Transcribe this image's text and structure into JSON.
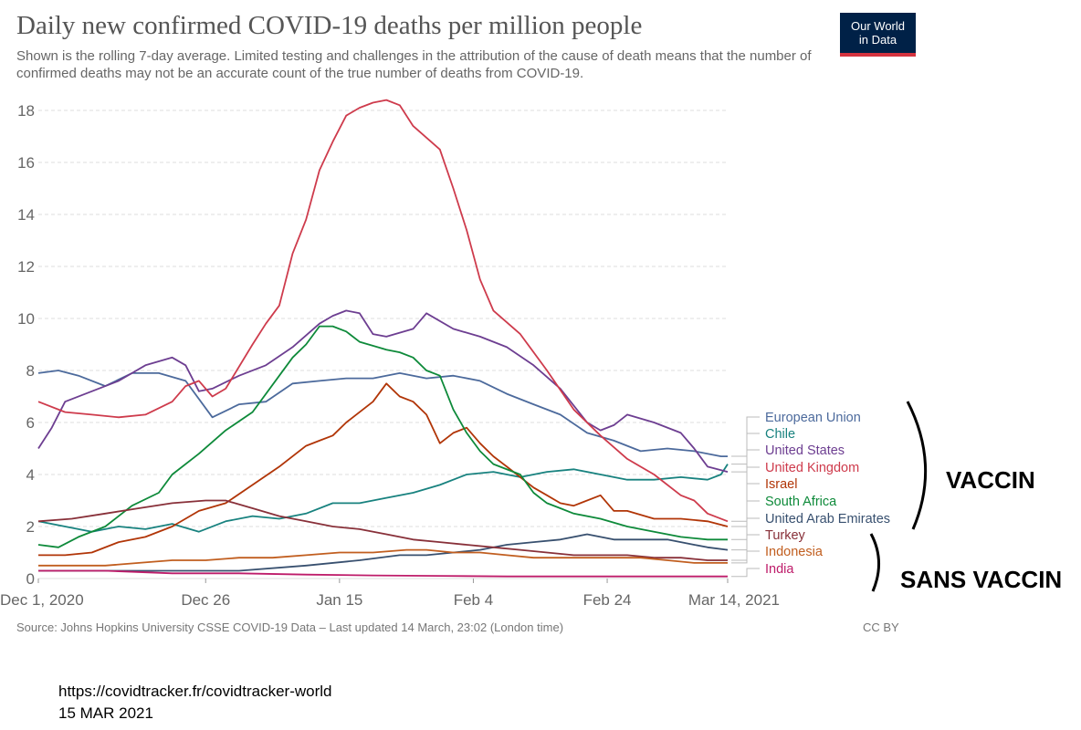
{
  "header": {
    "title": "Daily new confirmed COVID-19 deaths per million people",
    "subtitle": "Shown is the rolling 7-day average. Limited testing and challenges in the attribution of the cause of death means that the number of confirmed deaths may not be an accurate count of the true number of deaths from COVID-19.",
    "logo_line1": "Our World",
    "logo_line2": "in Data"
  },
  "footer": {
    "source": "Source: Johns Hopkins University CSSE COVID-19 Data – Last updated 14 March, 23:02 (London time)",
    "license": "CC BY"
  },
  "annotations": {
    "vaccin": "VACCIN",
    "sans_vaccin": "SANS VACCIN",
    "url": "https://covidtracker.fr/covidtracker-world",
    "date": "15 MAR 2021"
  },
  "colors": {
    "background": "#ffffff",
    "grid": "#dddddd",
    "axis_text": "#666666",
    "logo_background": "#002147",
    "logo_accent": "#d4333f"
  },
  "chart_data": {
    "type": "line",
    "title": "Daily new confirmed COVID-19 deaths per million people",
    "xlabel": "",
    "ylabel": "",
    "x_ticks": [
      "Dec 1, 2020",
      "Dec 26",
      "Jan 15",
      "Feb 4",
      "Feb 24",
      "Mar 14, 2021"
    ],
    "x_tick_days": [
      0,
      25,
      45,
      65,
      85,
      103
    ],
    "x_range": [
      "2020-12-01",
      "2021-03-14"
    ],
    "y_ticks": [
      0,
      2,
      4,
      6,
      8,
      10,
      12,
      14,
      16,
      18
    ],
    "ylim": [
      0,
      18.5
    ],
    "grid": true,
    "legend": "right, labels at line ends",
    "groups": [
      {
        "label": "VACCIN",
        "members": [
          "European Union",
          "Chile",
          "United States",
          "United Kingdom",
          "Israel",
          "South Africa",
          "United Arab Emirates"
        ]
      },
      {
        "label": "SANS VACCIN",
        "members": [
          "Turkey",
          "Indonesia",
          "India"
        ]
      }
    ],
    "series": [
      {
        "name": "European Union",
        "color": "#4c6a9c",
        "points": [
          [
            0,
            7.9
          ],
          [
            3,
            8.0
          ],
          [
            6,
            7.8
          ],
          [
            10,
            7.4
          ],
          [
            14,
            7.9
          ],
          [
            18,
            7.9
          ],
          [
            22,
            7.6
          ],
          [
            26,
            6.2
          ],
          [
            30,
            6.7
          ],
          [
            34,
            6.8
          ],
          [
            38,
            7.5
          ],
          [
            42,
            7.6
          ],
          [
            46,
            7.7
          ],
          [
            50,
            7.7
          ],
          [
            54,
            7.9
          ],
          [
            58,
            7.7
          ],
          [
            62,
            7.8
          ],
          [
            66,
            7.6
          ],
          [
            70,
            7.1
          ],
          [
            74,
            6.7
          ],
          [
            78,
            6.3
          ],
          [
            82,
            5.6
          ],
          [
            86,
            5.3
          ],
          [
            90,
            4.9
          ],
          [
            94,
            5.0
          ],
          [
            98,
            4.9
          ],
          [
            102,
            4.7
          ],
          [
            103,
            4.7
          ]
        ]
      },
      {
        "name": "Chile",
        "color": "#18827f",
        "points": [
          [
            0,
            2.2
          ],
          [
            4,
            2.0
          ],
          [
            8,
            1.8
          ],
          [
            12,
            2.0
          ],
          [
            16,
            1.9
          ],
          [
            20,
            2.1
          ],
          [
            24,
            1.8
          ],
          [
            28,
            2.2
          ],
          [
            32,
            2.4
          ],
          [
            36,
            2.3
          ],
          [
            40,
            2.5
          ],
          [
            44,
            2.9
          ],
          [
            48,
            2.9
          ],
          [
            52,
            3.1
          ],
          [
            56,
            3.3
          ],
          [
            60,
            3.6
          ],
          [
            64,
            4.0
          ],
          [
            68,
            4.1
          ],
          [
            72,
            3.9
          ],
          [
            76,
            4.1
          ],
          [
            80,
            4.2
          ],
          [
            84,
            4.0
          ],
          [
            88,
            3.8
          ],
          [
            92,
            3.8
          ],
          [
            96,
            3.9
          ],
          [
            100,
            3.8
          ],
          [
            102,
            4.0
          ],
          [
            103,
            4.4
          ]
        ]
      },
      {
        "name": "United States",
        "color": "#6d3e91",
        "points": [
          [
            0,
            5.0
          ],
          [
            2,
            5.8
          ],
          [
            4,
            6.8
          ],
          [
            8,
            7.2
          ],
          [
            12,
            7.6
          ],
          [
            16,
            8.2
          ],
          [
            20,
            8.5
          ],
          [
            22,
            8.2
          ],
          [
            24,
            7.2
          ],
          [
            26,
            7.3
          ],
          [
            30,
            7.8
          ],
          [
            34,
            8.2
          ],
          [
            38,
            8.9
          ],
          [
            42,
            9.8
          ],
          [
            44,
            10.1
          ],
          [
            46,
            10.3
          ],
          [
            48,
            10.2
          ],
          [
            50,
            9.4
          ],
          [
            52,
            9.3
          ],
          [
            56,
            9.6
          ],
          [
            58,
            10.2
          ],
          [
            62,
            9.6
          ],
          [
            66,
            9.3
          ],
          [
            70,
            8.9
          ],
          [
            74,
            8.2
          ],
          [
            78,
            7.3
          ],
          [
            82,
            6.0
          ],
          [
            84,
            5.7
          ],
          [
            86,
            5.9
          ],
          [
            88,
            6.3
          ],
          [
            92,
            6.0
          ],
          [
            96,
            5.6
          ],
          [
            98,
            5.0
          ],
          [
            100,
            4.3
          ],
          [
            103,
            4.1
          ]
        ]
      },
      {
        "name": "United Kingdom",
        "color": "#ce3b4c",
        "points": [
          [
            0,
            6.8
          ],
          [
            4,
            6.4
          ],
          [
            8,
            6.3
          ],
          [
            12,
            6.2
          ],
          [
            16,
            6.3
          ],
          [
            20,
            6.8
          ],
          [
            22,
            7.4
          ],
          [
            24,
            7.6
          ],
          [
            26,
            7.0
          ],
          [
            28,
            7.3
          ],
          [
            32,
            9.0
          ],
          [
            34,
            9.8
          ],
          [
            36,
            10.5
          ],
          [
            38,
            12.5
          ],
          [
            40,
            13.8
          ],
          [
            42,
            15.7
          ],
          [
            44,
            16.8
          ],
          [
            46,
            17.8
          ],
          [
            48,
            18.1
          ],
          [
            50,
            18.3
          ],
          [
            52,
            18.4
          ],
          [
            54,
            18.2
          ],
          [
            56,
            17.4
          ],
          [
            60,
            16.5
          ],
          [
            62,
            15.0
          ],
          [
            64,
            13.4
          ],
          [
            66,
            11.5
          ],
          [
            68,
            10.3
          ],
          [
            72,
            9.4
          ],
          [
            76,
            8.0
          ],
          [
            80,
            6.5
          ],
          [
            84,
            5.5
          ],
          [
            88,
            4.6
          ],
          [
            92,
            4.0
          ],
          [
            96,
            3.2
          ],
          [
            98,
            3.0
          ],
          [
            100,
            2.5
          ],
          [
            103,
            2.2
          ]
        ]
      },
      {
        "name": "Israel",
        "color": "#b13507",
        "points": [
          [
            0,
            0.9
          ],
          [
            4,
            0.9
          ],
          [
            8,
            1.0
          ],
          [
            12,
            1.4
          ],
          [
            16,
            1.6
          ],
          [
            20,
            2.0
          ],
          [
            24,
            2.6
          ],
          [
            28,
            2.9
          ],
          [
            32,
            3.6
          ],
          [
            36,
            4.3
          ],
          [
            40,
            5.1
          ],
          [
            42,
            5.3
          ],
          [
            44,
            5.5
          ],
          [
            46,
            6.0
          ],
          [
            50,
            6.8
          ],
          [
            52,
            7.5
          ],
          [
            54,
            7.0
          ],
          [
            56,
            6.8
          ],
          [
            58,
            6.3
          ],
          [
            60,
            5.2
          ],
          [
            62,
            5.6
          ],
          [
            64,
            5.8
          ],
          [
            66,
            5.2
          ],
          [
            68,
            4.7
          ],
          [
            70,
            4.3
          ],
          [
            74,
            3.5
          ],
          [
            76,
            3.2
          ],
          [
            78,
            2.9
          ],
          [
            80,
            2.8
          ],
          [
            84,
            3.2
          ],
          [
            86,
            2.6
          ],
          [
            88,
            2.6
          ],
          [
            92,
            2.3
          ],
          [
            96,
            2.3
          ],
          [
            100,
            2.2
          ],
          [
            103,
            2.0
          ]
        ]
      },
      {
        "name": "South Africa",
        "color": "#0e8a3a",
        "points": [
          [
            0,
            1.3
          ],
          [
            3,
            1.2
          ],
          [
            6,
            1.6
          ],
          [
            10,
            2.0
          ],
          [
            14,
            2.8
          ],
          [
            18,
            3.3
          ],
          [
            20,
            4.0
          ],
          [
            24,
            4.8
          ],
          [
            28,
            5.7
          ],
          [
            32,
            6.4
          ],
          [
            36,
            7.8
          ],
          [
            38,
            8.5
          ],
          [
            40,
            9.0
          ],
          [
            42,
            9.7
          ],
          [
            44,
            9.7
          ],
          [
            46,
            9.5
          ],
          [
            48,
            9.1
          ],
          [
            52,
            8.8
          ],
          [
            54,
            8.7
          ],
          [
            56,
            8.5
          ],
          [
            58,
            8.0
          ],
          [
            60,
            7.8
          ],
          [
            62,
            6.5
          ],
          [
            64,
            5.6
          ],
          [
            66,
            4.9
          ],
          [
            68,
            4.4
          ],
          [
            72,
            4.0
          ],
          [
            74,
            3.3
          ],
          [
            76,
            2.9
          ],
          [
            78,
            2.7
          ],
          [
            80,
            2.5
          ],
          [
            84,
            2.3
          ],
          [
            88,
            2.0
          ],
          [
            92,
            1.8
          ],
          [
            96,
            1.6
          ],
          [
            100,
            1.5
          ],
          [
            103,
            1.5
          ]
        ]
      },
      {
        "name": "United Arab Emirates",
        "color": "#38506f",
        "points": [
          [
            0,
            0.3
          ],
          [
            10,
            0.3
          ],
          [
            20,
            0.3
          ],
          [
            30,
            0.3
          ],
          [
            40,
            0.5
          ],
          [
            48,
            0.7
          ],
          [
            54,
            0.9
          ],
          [
            58,
            0.9
          ],
          [
            62,
            1.0
          ],
          [
            66,
            1.1
          ],
          [
            70,
            1.3
          ],
          [
            74,
            1.4
          ],
          [
            78,
            1.5
          ],
          [
            82,
            1.7
          ],
          [
            86,
            1.5
          ],
          [
            90,
            1.5
          ],
          [
            94,
            1.5
          ],
          [
            98,
            1.3
          ],
          [
            100,
            1.2
          ],
          [
            103,
            1.1
          ]
        ]
      },
      {
        "name": "Turkey",
        "color": "#883039",
        "points": [
          [
            0,
            2.2
          ],
          [
            5,
            2.3
          ],
          [
            10,
            2.5
          ],
          [
            15,
            2.7
          ],
          [
            20,
            2.9
          ],
          [
            25,
            3.0
          ],
          [
            28,
            3.0
          ],
          [
            32,
            2.7
          ],
          [
            36,
            2.4
          ],
          [
            40,
            2.2
          ],
          [
            44,
            2.0
          ],
          [
            48,
            1.9
          ],
          [
            52,
            1.7
          ],
          [
            56,
            1.5
          ],
          [
            60,
            1.4
          ],
          [
            64,
            1.3
          ],
          [
            68,
            1.2
          ],
          [
            72,
            1.1
          ],
          [
            76,
            1.0
          ],
          [
            80,
            0.9
          ],
          [
            84,
            0.9
          ],
          [
            88,
            0.9
          ],
          [
            92,
            0.8
          ],
          [
            96,
            0.8
          ],
          [
            100,
            0.7
          ],
          [
            103,
            0.7
          ]
        ]
      },
      {
        "name": "Indonesia",
        "color": "#c15e1f",
        "points": [
          [
            0,
            0.5
          ],
          [
            5,
            0.5
          ],
          [
            10,
            0.5
          ],
          [
            15,
            0.6
          ],
          [
            20,
            0.7
          ],
          [
            25,
            0.7
          ],
          [
            30,
            0.8
          ],
          [
            35,
            0.8
          ],
          [
            40,
            0.9
          ],
          [
            45,
            1.0
          ],
          [
            50,
            1.0
          ],
          [
            55,
            1.1
          ],
          [
            58,
            1.1
          ],
          [
            62,
            1.0
          ],
          [
            66,
            1.0
          ],
          [
            70,
            0.9
          ],
          [
            74,
            0.8
          ],
          [
            78,
            0.8
          ],
          [
            82,
            0.8
          ],
          [
            86,
            0.8
          ],
          [
            90,
            0.8
          ],
          [
            94,
            0.7
          ],
          [
            98,
            0.6
          ],
          [
            100,
            0.6
          ],
          [
            103,
            0.6
          ]
        ]
      },
      {
        "name": "India",
        "color": "#be1c6a",
        "points": [
          [
            0,
            0.3
          ],
          [
            10,
            0.3
          ],
          [
            20,
            0.2
          ],
          [
            30,
            0.2
          ],
          [
            40,
            0.15
          ],
          [
            50,
            0.12
          ],
          [
            60,
            0.1
          ],
          [
            70,
            0.08
          ],
          [
            80,
            0.08
          ],
          [
            90,
            0.08
          ],
          [
            100,
            0.08
          ],
          [
            103,
            0.08
          ]
        ]
      }
    ]
  }
}
